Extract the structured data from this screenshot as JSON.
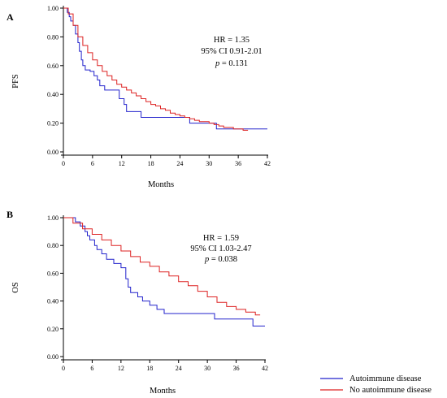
{
  "chart_data": [
    {
      "type": "line",
      "panel_label": "A",
      "xlabel": "Months",
      "ylabel": "PFS",
      "xlim": [
        0,
        42
      ],
      "ylim": [
        0,
        1
      ],
      "xticks": [
        "0",
        "6",
        "12",
        "18",
        "24",
        "30",
        "36",
        "42"
      ],
      "yticks": [
        "0.00",
        "0.20",
        "0.40",
        "0.60",
        "0.80",
        "1.00"
      ],
      "grid": false,
      "annotation": {
        "hr": "HR = 1.35",
        "ci": "95% CI 0.91-2.01",
        "p_symbol": "p",
        "p_value": "= 0.131"
      },
      "series": [
        {
          "name": "Autoimmune disease",
          "color": "#2222cc",
          "x": [
            0,
            0.8,
            1.2,
            1.5,
            2.0,
            2.5,
            3.0,
            3.3,
            3.7,
            4.0,
            4.5,
            5.5,
            6.3,
            7.0,
            7.5,
            8.5,
            11.0,
            11.5,
            12.5,
            13.0,
            15.5,
            16.0,
            25.5,
            26.0,
            31.0,
            31.5,
            42.0
          ],
          "y": [
            1.0,
            0.97,
            0.94,
            0.91,
            0.88,
            0.82,
            0.76,
            0.7,
            0.64,
            0.6,
            0.57,
            0.56,
            0.53,
            0.5,
            0.46,
            0.43,
            0.43,
            0.37,
            0.33,
            0.28,
            0.28,
            0.24,
            0.24,
            0.2,
            0.2,
            0.16,
            0.16
          ]
        },
        {
          "name": "No autoimmune disease",
          "color": "#dd2222",
          "x": [
            0,
            1,
            2,
            3,
            4,
            5,
            6,
            7,
            8,
            9,
            10,
            11,
            12,
            13,
            14,
            15,
            16,
            17,
            18,
            19,
            20,
            21,
            22,
            23,
            24,
            25,
            26,
            27,
            28,
            29,
            30,
            31,
            32,
            33,
            34,
            35,
            36,
            37,
            38
          ],
          "y": [
            1.0,
            0.96,
            0.88,
            0.8,
            0.74,
            0.69,
            0.64,
            0.6,
            0.56,
            0.53,
            0.5,
            0.47,
            0.45,
            0.43,
            0.41,
            0.39,
            0.37,
            0.35,
            0.33,
            0.32,
            0.3,
            0.29,
            0.27,
            0.26,
            0.25,
            0.24,
            0.23,
            0.22,
            0.21,
            0.21,
            0.2,
            0.19,
            0.18,
            0.17,
            0.17,
            0.16,
            0.16,
            0.15,
            0.15
          ]
        }
      ]
    },
    {
      "type": "line",
      "panel_label": "B",
      "xlabel": "Months",
      "ylabel": "OS",
      "xlim": [
        0,
        42
      ],
      "ylim": [
        0,
        1
      ],
      "xticks": [
        "0",
        "6",
        "12",
        "18",
        "24",
        "30",
        "36",
        "42"
      ],
      "yticks": [
        "0.00",
        "0.20",
        "0.40",
        "0.60",
        "0.80",
        "1.00"
      ],
      "grid": false,
      "annotation": {
        "hr": "HR = 1.59",
        "ci": "95% CI 1.03-2.47",
        "p_symbol": "p",
        "p_value": "= 0.038"
      },
      "series": [
        {
          "name": "Autoimmune disease",
          "color": "#2222cc",
          "x": [
            0,
            2.0,
            2.5,
            3.5,
            4.5,
            5.0,
            5.5,
            6.5,
            7.0,
            8.0,
            9.0,
            10.5,
            12.0,
            13.0,
            13.5,
            14.0,
            15.5,
            16.5,
            18.0,
            19.5,
            21.0,
            31.0,
            31.5,
            39.0,
            39.5,
            42.0
          ],
          "y": [
            1.0,
            1.0,
            0.97,
            0.94,
            0.9,
            0.87,
            0.84,
            0.8,
            0.77,
            0.74,
            0.7,
            0.67,
            0.64,
            0.56,
            0.5,
            0.46,
            0.43,
            0.4,
            0.37,
            0.34,
            0.31,
            0.31,
            0.27,
            0.27,
            0.22,
            0.22
          ]
        },
        {
          "name": "No autoimmune disease",
          "color": "#dd2222",
          "x": [
            0,
            2,
            4,
            6,
            8,
            10,
            12,
            14,
            16,
            18,
            20,
            22,
            24,
            26,
            28,
            30,
            32,
            34,
            36,
            38,
            40,
            41
          ],
          "y": [
            1.0,
            0.96,
            0.92,
            0.88,
            0.84,
            0.8,
            0.76,
            0.72,
            0.68,
            0.65,
            0.61,
            0.58,
            0.54,
            0.51,
            0.47,
            0.43,
            0.39,
            0.36,
            0.34,
            0.32,
            0.3,
            0.3
          ]
        }
      ]
    }
  ],
  "legend": {
    "position": "bottom-right",
    "items": [
      {
        "label": "Autoimmune disease",
        "color": "#2222cc"
      },
      {
        "label": "No autoimmune disease",
        "color": "#dd2222"
      }
    ]
  }
}
